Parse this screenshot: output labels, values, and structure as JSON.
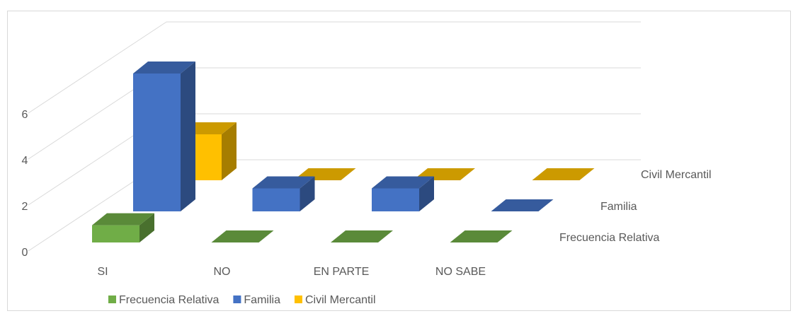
{
  "chart_data": {
    "type": "bar3d",
    "categories": [
      "SI",
      "NO",
      "EN PARTE",
      "NO SABE"
    ],
    "series": [
      {
        "name": "Frecuencia Relativa",
        "color": "#70ad47",
        "values": [
          0.75,
          0,
          0,
          0
        ]
      },
      {
        "name": "Familia",
        "color": "#4472c4",
        "values": [
          6,
          1,
          1,
          0
        ]
      },
      {
        "name": "Civil Mercantil",
        "color": "#ffc000",
        "values": [
          2,
          0,
          0,
          0
        ]
      }
    ],
    "ylim": [
      0,
      6
    ],
    "yticks": [
      0,
      2,
      4,
      6
    ],
    "grid": true,
    "legend": "bottom"
  }
}
